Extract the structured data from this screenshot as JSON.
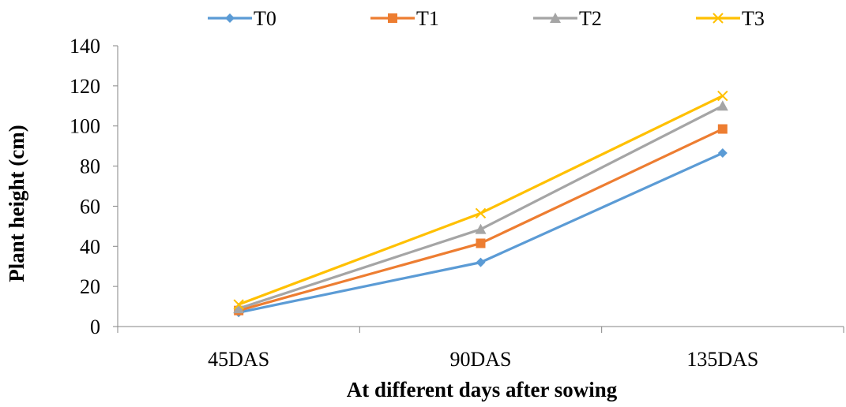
{
  "chart_data": {
    "type": "line",
    "title": "",
    "xlabel": "At different days after sowing",
    "ylabel": "Plant height (cm)",
    "categories": [
      "45DAS",
      "90DAS",
      "135DAS"
    ],
    "ylim": [
      0,
      140
    ],
    "yticks": [
      0,
      20,
      40,
      60,
      80,
      100,
      120,
      140
    ],
    "grid": false,
    "legend_position": "top",
    "series": [
      {
        "name": "T0",
        "color": "#5B9BD5",
        "marker": "diamond",
        "values": [
          7,
          32,
          86.5
        ]
      },
      {
        "name": "T1",
        "color": "#ED7D31",
        "marker": "square",
        "values": [
          8,
          41.5,
          98.5
        ]
      },
      {
        "name": "T2",
        "color": "#A5A5A5",
        "marker": "triangle",
        "values": [
          9,
          48.5,
          110
        ]
      },
      {
        "name": "T3",
        "color": "#FFC000",
        "marker": "x",
        "values": [
          11,
          56.5,
          115
        ]
      }
    ]
  }
}
